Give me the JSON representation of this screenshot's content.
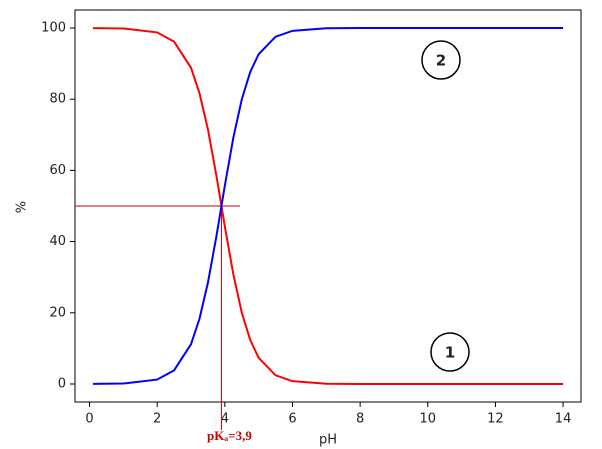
{
  "chart_data": {
    "type": "line",
    "x_label": "pH",
    "y_label": "%",
    "x": [
      0.1,
      1,
      2,
      2.5,
      3,
      3.25,
      3.5,
      3.75,
      3.9,
      4,
      4.25,
      4.5,
      4.75,
      5,
      5.5,
      6,
      7,
      8,
      10,
      12,
      14
    ],
    "series": [
      {
        "color": "#ff0000",
        "values": [
          99.98,
          99.87,
          98.76,
          96.17,
          88.82,
          81.71,
          71.53,
          58.56,
          50,
          44.27,
          30.88,
          20.08,
          12.38,
          7.36,
          2.45,
          0.79,
          0.08,
          0.01,
          0,
          0,
          0
        ]
      },
      {
        "color": "#0000ff",
        "values": [
          0.02,
          0.13,
          1.24,
          3.83,
          11.18,
          18.29,
          28.47,
          41.44,
          50,
          55.73,
          69.12,
          79.92,
          87.62,
          92.64,
          97.55,
          99.21,
          99.92,
          99.99,
          100,
          100,
          100
        ]
      }
    ],
    "xlim": [
      -0.43,
      14.53
    ],
    "ylim": [
      -5.06,
      105.06
    ],
    "xticks": [
      0,
      2,
      4,
      6,
      8,
      10,
      12,
      14
    ],
    "yticks": [
      0,
      20,
      40,
      60,
      80,
      100
    ],
    "reference_lines": {
      "x": 3.9,
      "y": 50,
      "color": "#cc0000",
      "label": "pKₐ=3,9"
    },
    "annotations": [
      "1",
      "2"
    ]
  }
}
